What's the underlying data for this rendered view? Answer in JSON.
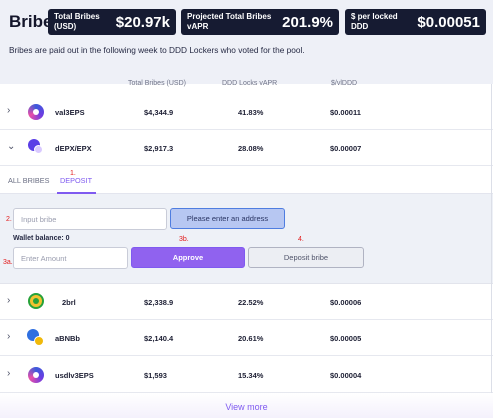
{
  "header": {
    "title": "Bribe",
    "stats": [
      {
        "label": "Total Bribes (USD)",
        "value": "$20.97k"
      },
      {
        "label": "Projected Total Bribes vAPR",
        "value": "201.9%"
      },
      {
        "label": "$ per locked DDD",
        "value": "$0.00051"
      }
    ],
    "description": "Bribes are paid out in the following week to DDD Lockers who voted for the pool."
  },
  "table": {
    "columns": [
      "Total Bribes (USD)",
      "DDD Locks vAPR",
      "$/vlDDD"
    ],
    "rows_top": [
      {
        "name": "val3EPS",
        "total": "$4,344.9",
        "vapr": "41.83%",
        "per": "$0.00011"
      },
      {
        "name": "dEPX/EPX",
        "total": "$2,917.3",
        "vapr": "28.08%",
        "per": "$0.00007"
      }
    ],
    "rows_bottom": [
      {
        "name": "2brl",
        "total": "$2,338.9",
        "vapr": "22.52%",
        "per": "$0.00006"
      },
      {
        "name": "aBNBb",
        "total": "$2,140.4",
        "vapr": "20.61%",
        "per": "$0.00005"
      },
      {
        "name": "usdlv3EPS",
        "total": "$1,593",
        "vapr": "15.34%",
        "per": "$0.00004"
      }
    ]
  },
  "tabs": {
    "all": "ALL BRIBES",
    "deposit": "DEPOSIT"
  },
  "steps": {
    "s1": "1.",
    "s2": "2.",
    "s3a": "3a.",
    "s3b": "3b.",
    "s4": "4."
  },
  "deposit": {
    "bribe_placeholder": "Input bribe",
    "address_button": "Please enter an address",
    "wallet_balance": "Wallet balance: 0",
    "amount_placeholder": "Enter Amount",
    "approve": "Approve",
    "deposit_bribe": "Deposit bribe"
  },
  "view_more": "View more",
  "icons": {
    "expand": "chevron-right-icon",
    "collapse": "chevron-down-icon"
  },
  "colors": {
    "accent": "#7f5af0",
    "stat_bg": "#161b32",
    "step_marker": "#e21b1b"
  }
}
